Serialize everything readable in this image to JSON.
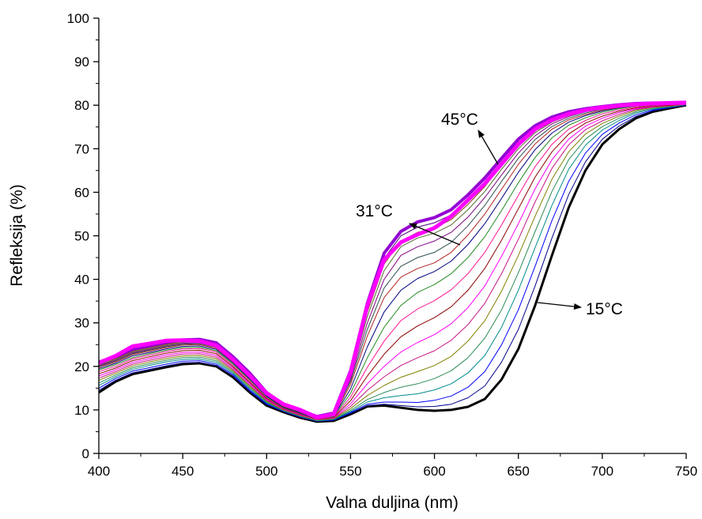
{
  "chart_data": {
    "type": "line",
    "xlabel": "Valna duljina (nm)",
    "ylabel": "Refleksija (%)",
    "xlim": [
      400,
      750
    ],
    "ylim": [
      0,
      100
    ],
    "xticks": [
      400,
      450,
      500,
      550,
      600,
      650,
      700,
      750
    ],
    "yticks": [
      0,
      10,
      20,
      30,
      40,
      50,
      60,
      70,
      80,
      90,
      100
    ],
    "grid": false,
    "legend": "none",
    "x": [
      400,
      410,
      420,
      430,
      440,
      450,
      460,
      470,
      480,
      490,
      500,
      510,
      520,
      530,
      540,
      550,
      560,
      570,
      580,
      590,
      600,
      610,
      620,
      630,
      640,
      650,
      660,
      670,
      680,
      690,
      700,
      710,
      720,
      730,
      740,
      750
    ],
    "series": [
      {
        "values": [
          14.0,
          16.5,
          18.2,
          19.0,
          19.8,
          20.5,
          20.7,
          20.0,
          17.5,
          14.0,
          11.0,
          9.5,
          8.2,
          7.3,
          7.5,
          9.0,
          10.8,
          11.0,
          10.5,
          10.0,
          9.8,
          10.0,
          10.7,
          12.5,
          17.0,
          24.0,
          34.0,
          45.5,
          56.5,
          65.0,
          71.0,
          74.5,
          77.0,
          78.5,
          79.3,
          80.0
        ]
      },
      {
        "values": [
          14.5,
          16.8,
          18.5,
          19.3,
          20.1,
          20.8,
          20.9,
          20.2,
          17.8,
          14.2,
          11.2,
          9.6,
          8.3,
          7.4,
          7.6,
          9.2,
          11.0,
          11.3,
          11.0,
          10.7,
          10.8,
          11.3,
          12.8,
          15.5,
          21.0,
          28.5,
          38.5,
          49.5,
          59.5,
          67.0,
          72.2,
          75.2,
          77.4,
          78.7,
          79.4,
          80.0
        ]
      },
      {
        "values": [
          15.0,
          17.2,
          18.9,
          19.7,
          20.5,
          21.2,
          21.3,
          20.5,
          18.1,
          14.5,
          11.4,
          9.7,
          8.4,
          7.4,
          7.7,
          9.4,
          11.3,
          11.8,
          11.8,
          11.7,
          12.2,
          13.2,
          15.2,
          18.8,
          25.0,
          33.0,
          43.0,
          53.5,
          62.5,
          69.0,
          73.3,
          75.9,
          77.8,
          78.9,
          79.5,
          80.1
        ]
      },
      {
        "values": [
          15.6,
          17.6,
          19.3,
          20.2,
          21.0,
          21.6,
          21.7,
          20.9,
          18.4,
          14.8,
          11.6,
          9.8,
          8.5,
          7.5,
          7.8,
          9.6,
          11.8,
          12.8,
          13.3,
          13.7,
          14.6,
          16.0,
          18.5,
          22.5,
          29.0,
          37.5,
          47.3,
          57.0,
          65.3,
          70.8,
          74.3,
          76.5,
          78.2,
          79.1,
          79.6,
          80.1
        ]
      },
      {
        "values": [
          16.2,
          18.0,
          19.7,
          20.6,
          21.4,
          22.0,
          22.1,
          21.3,
          18.7,
          15.1,
          11.8,
          9.9,
          8.6,
          7.6,
          7.9,
          9.9,
          12.4,
          14.0,
          15.2,
          16.0,
          17.2,
          19.0,
          22.0,
          26.5,
          33.0,
          41.5,
          51.0,
          60.2,
          67.5,
          72.2,
          75.1,
          77.0,
          78.5,
          79.3,
          79.7,
          80.1
        ]
      },
      {
        "values": [
          16.8,
          18.4,
          20.1,
          21.0,
          21.8,
          22.4,
          22.5,
          21.7,
          19.0,
          15.4,
          12.0,
          10.0,
          8.7,
          7.7,
          8.0,
          10.3,
          13.3,
          15.6,
          17.5,
          18.8,
          20.2,
          22.3,
          25.8,
          30.5,
          37.3,
          45.5,
          54.5,
          63.0,
          69.3,
          73.4,
          75.8,
          77.5,
          78.8,
          79.5,
          79.8,
          80.2
        ]
      },
      {
        "values": [
          17.3,
          18.8,
          20.5,
          21.4,
          22.2,
          22.8,
          22.9,
          22.1,
          19.3,
          15.7,
          12.2,
          10.1,
          8.8,
          7.8,
          8.1,
          10.8,
          14.5,
          17.6,
          20.2,
          22.0,
          23.6,
          26.0,
          29.6,
          34.5,
          41.3,
          49.2,
          57.8,
          65.5,
          70.9,
          74.4,
          76.4,
          77.9,
          79.0,
          79.6,
          79.9,
          80.2
        ]
      },
      {
        "values": [
          17.8,
          19.2,
          20.9,
          21.8,
          22.6,
          23.2,
          23.3,
          22.5,
          19.6,
          16.0,
          12.4,
          10.2,
          8.9,
          7.8,
          8.2,
          11.4,
          16.0,
          20.0,
          23.3,
          25.5,
          27.3,
          29.8,
          33.5,
          38.5,
          45.3,
          52.8,
          60.8,
          67.5,
          72.2,
          75.2,
          77.0,
          78.3,
          79.2,
          79.7,
          80.0,
          80.2
        ]
      },
      {
        "values": [
          18.3,
          19.6,
          21.3,
          22.2,
          23.0,
          23.6,
          23.7,
          22.9,
          19.9,
          16.3,
          12.6,
          10.3,
          9.0,
          7.9,
          8.3,
          12.1,
          17.8,
          22.8,
          26.8,
          29.3,
          31.2,
          33.7,
          37.5,
          42.5,
          49.0,
          56.2,
          63.5,
          69.3,
          73.4,
          75.9,
          77.5,
          78.6,
          79.4,
          79.8,
          80.0,
          80.3
        ]
      },
      {
        "values": [
          18.8,
          20.0,
          21.7,
          22.6,
          23.4,
          24.0,
          24.1,
          23.3,
          20.2,
          16.6,
          12.8,
          10.4,
          9.1,
          8.0,
          8.4,
          12.9,
          19.8,
          25.8,
          30.5,
          33.2,
          35.1,
          37.6,
          41.3,
          46.2,
          52.5,
          59.3,
          65.9,
          71.0,
          74.5,
          76.5,
          78.0,
          78.9,
          79.6,
          79.9,
          80.1,
          80.3
        ]
      },
      {
        "values": [
          19.2,
          20.4,
          22.0,
          22.9,
          23.7,
          24.3,
          24.4,
          23.6,
          20.5,
          16.9,
          13.0,
          10.5,
          9.2,
          8.0,
          8.5,
          13.8,
          22.0,
          29.0,
          34.0,
          37.0,
          38.8,
          41.3,
          45.0,
          49.8,
          55.8,
          62.2,
          68.0,
          72.5,
          75.4,
          77.1,
          78.4,
          79.2,
          79.8,
          80.0,
          80.2,
          80.4
        ]
      },
      {
        "values": [
          19.5,
          20.7,
          22.4,
          23.2,
          24.0,
          24.6,
          24.7,
          23.9,
          20.8,
          17.1,
          13.2,
          10.6,
          9.3,
          8.1,
          8.6,
          14.8,
          24.5,
          32.5,
          37.5,
          40.2,
          41.8,
          44.2,
          48.0,
          52.8,
          58.6,
          64.6,
          69.8,
          73.6,
          76.1,
          77.6,
          78.7,
          79.4,
          79.9,
          80.1,
          80.3,
          80.4
        ]
      },
      {
        "values": [
          19.8,
          21.0,
          22.7,
          23.5,
          24.3,
          24.9,
          25.0,
          24.2,
          21.0,
          17.3,
          13.4,
          10.7,
          9.4,
          8.2,
          8.7,
          15.8,
          27.0,
          35.8,
          40.5,
          42.5,
          43.8,
          46.2,
          50.2,
          55.0,
          60.7,
          66.4,
          71.1,
          74.5,
          76.6,
          77.9,
          78.9,
          79.5,
          80.0,
          80.2,
          80.3,
          80.5
        ]
      },
      {
        "values": [
          20.0,
          21.2,
          22.9,
          23.7,
          24.5,
          25.1,
          25.2,
          24.4,
          21.2,
          17.5,
          13.5,
          10.8,
          9.5,
          8.2,
          8.8,
          16.5,
          28.5,
          38.0,
          43.0,
          45.0,
          46.2,
          48.5,
          52.3,
          57.0,
          62.5,
          67.8,
          72.1,
          75.1,
          77.0,
          78.2,
          79.1,
          79.7,
          80.1,
          80.3,
          80.4,
          80.5
        ]
      },
      {
        "values": [
          20.2,
          21.4,
          23.1,
          23.9,
          24.7,
          25.3,
          25.4,
          24.6,
          21.4,
          17.7,
          13.6,
          10.9,
          9.6,
          8.3,
          8.9,
          17.0,
          30.0,
          40.0,
          45.5,
          47.5,
          48.8,
          50.8,
          54.3,
          58.8,
          64.0,
          69.0,
          73.0,
          75.7,
          77.4,
          78.5,
          79.3,
          79.8,
          80.2,
          80.3,
          80.4,
          80.5
        ]
      },
      {
        "values": [
          20.4,
          21.6,
          23.3,
          24.1,
          24.9,
          25.5,
          25.6,
          24.8,
          21.6,
          17.9,
          13.7,
          11.0,
          9.7,
          8.3,
          9.0,
          17.5,
          31.5,
          42.0,
          47.5,
          49.5,
          50.6,
          52.5,
          56.0,
          60.2,
          65.3,
          70.0,
          73.7,
          76.1,
          77.7,
          78.7,
          79.4,
          79.9,
          80.2,
          80.4,
          80.5,
          80.6
        ]
      },
      {
        "values": [
          20.6,
          21.8,
          23.5,
          24.3,
          25.1,
          25.7,
          25.8,
          25.0,
          21.8,
          18.0,
          13.8,
          11.1,
          9.8,
          8.4,
          9.1,
          18.0,
          32.5,
          43.5,
          48.8,
          50.8,
          51.8,
          53.7,
          57.2,
          61.3,
          66.2,
          70.8,
          74.3,
          76.5,
          78.0,
          78.9,
          79.5,
          80.0,
          80.3,
          80.4,
          80.5,
          80.6
        ]
      },
      {
        "values": [
          20.8,
          22.0,
          23.7,
          24.5,
          25.3,
          25.9,
          26.0,
          25.2,
          22.0,
          18.2,
          13.9,
          11.2,
          9.8,
          8.4,
          9.2,
          18.5,
          33.5,
          44.8,
          50.0,
          52.0,
          53.0,
          54.8,
          58.3,
          62.3,
          67.0,
          71.5,
          74.8,
          76.9,
          78.2,
          79.1,
          79.6,
          80.0,
          80.3,
          80.4,
          80.5,
          80.6
        ]
      },
      {
        "values": [
          21.0,
          22.2,
          23.9,
          24.7,
          25.5,
          26.1,
          26.2,
          25.4,
          22.2,
          18.4,
          14.0,
          11.3,
          9.9,
          8.5,
          9.3,
          19.0,
          34.5,
          46.0,
          51.0,
          53.2,
          54.2,
          56.0,
          59.4,
          63.3,
          67.8,
          72.2,
          75.3,
          77.3,
          78.5,
          79.2,
          79.7,
          80.1,
          80.4,
          80.5,
          80.5,
          80.6
        ]
      },
      {
        "values": [
          20.8,
          22.4,
          24.6,
          25.2,
          25.9,
          26.0,
          25.8,
          24.8,
          21.6,
          17.8,
          13.8,
          11.3,
          10.0,
          8.3,
          9.0,
          18.5,
          34.0,
          44.5,
          48.5,
          50.3,
          51.8,
          54.5,
          58.2,
          62.0,
          66.5,
          71.0,
          74.5,
          76.6,
          78.0,
          78.9,
          79.5,
          79.9,
          80.2,
          80.4,
          80.5,
          80.6
        ]
      }
    ],
    "annotations": [
      "45°C",
      "31°C",
      "15°C"
    ]
  }
}
